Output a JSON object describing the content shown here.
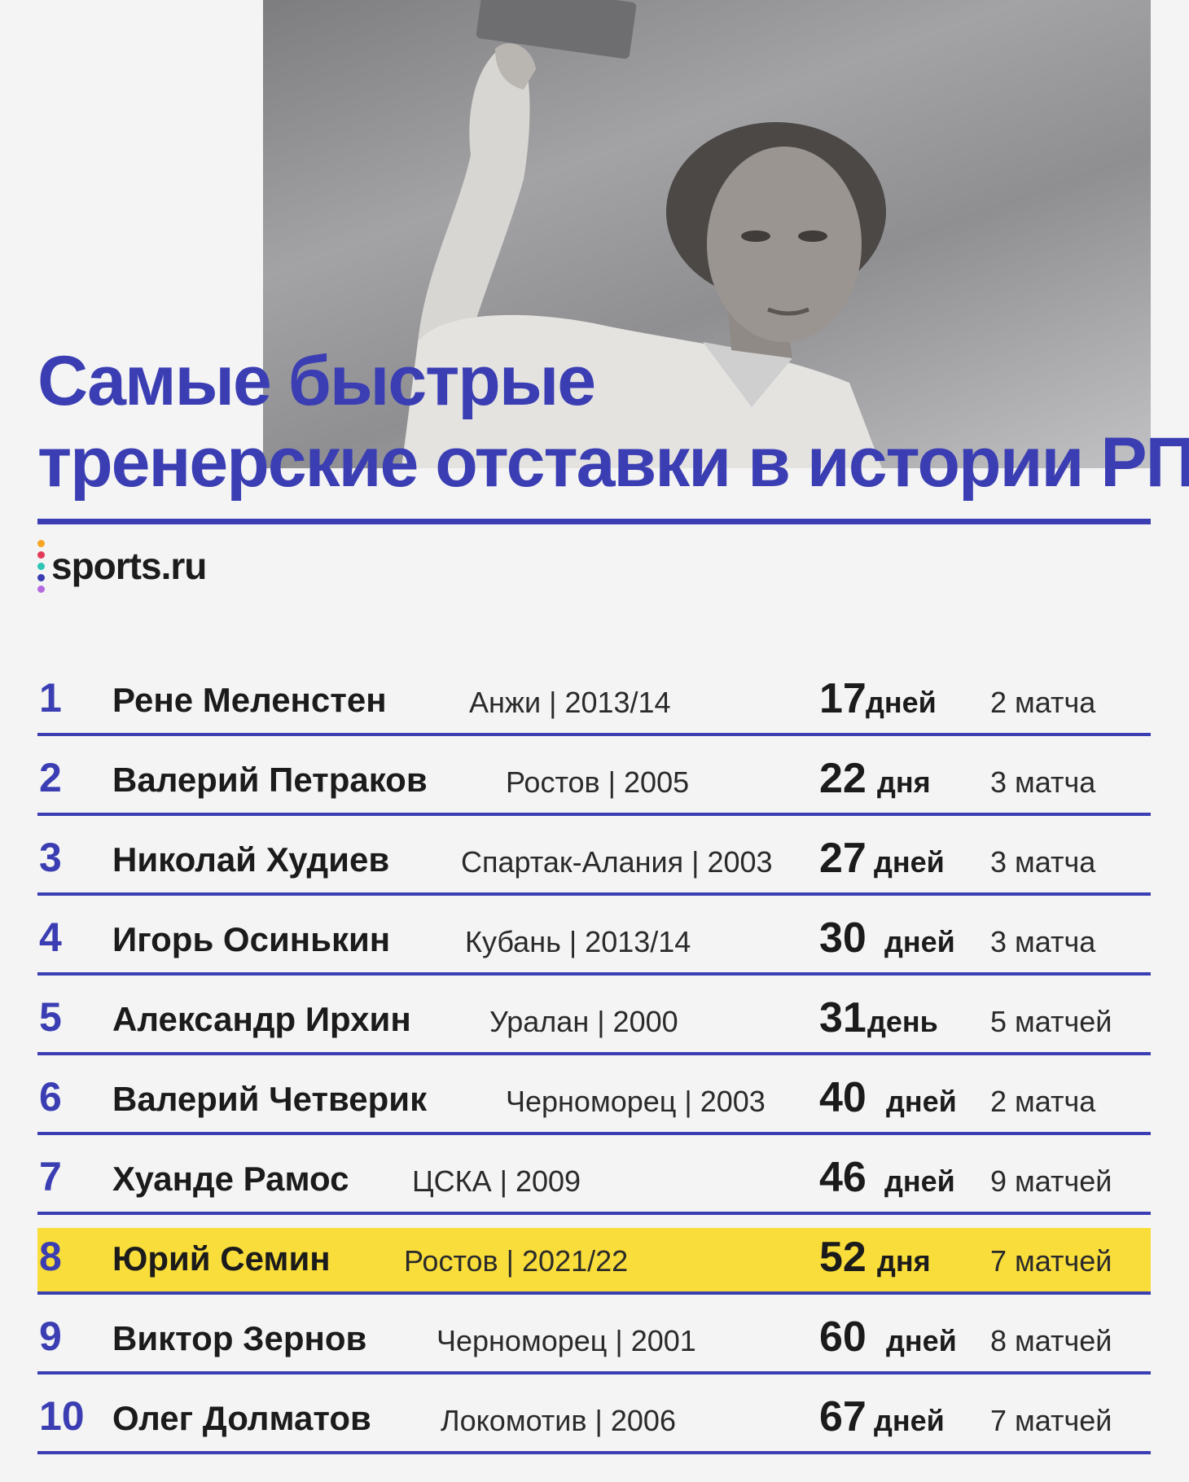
{
  "title": {
    "line1": "Самые быстрые",
    "line2": "тренерские отставки в истории РПЛ"
  },
  "logo": {
    "text": "sports.ru",
    "dot_colors": [
      "#f5a623",
      "#e23b5a",
      "#2ec4b6",
      "#3b3eb3",
      "#b56be0"
    ]
  },
  "colors": {
    "accent": "#3b3eb3",
    "highlight": "#f9dd3a",
    "background": "#f4f4f4"
  },
  "photo": {
    "description_icon": "coach-photo"
  },
  "rows": [
    {
      "rank": "1",
      "name": "Рене Меленстен",
      "club": "Анжи | 2013/14",
      "days": "17",
      "days_unit": "дней",
      "matches": "2 матча",
      "highlight": false
    },
    {
      "rank": "2",
      "name": "Валерий Петраков",
      "club": "Ростов | 2005",
      "days": "22",
      "days_unit": "дня",
      "matches": "3 матча",
      "highlight": false
    },
    {
      "rank": "3",
      "name": "Николай Худиев",
      "club": "Спартак-Алания | 2003",
      "days": "27",
      "days_unit": "дней",
      "matches": "3 матча",
      "highlight": false
    },
    {
      "rank": "4",
      "name": "Игорь Осинькин",
      "club": "Кубань | 2013/14",
      "days": "30",
      "days_unit": "дней",
      "matches": "3 матча",
      "highlight": false
    },
    {
      "rank": "5",
      "name": "Александр Ирхин",
      "club": "Уралан | 2000",
      "days": "31",
      "days_unit": "день",
      "matches": "5 матчей",
      "highlight": false
    },
    {
      "rank": "6",
      "name": "Валерий Четверик",
      "club": "Черноморец | 2003",
      "days": "40",
      "days_unit": "дней",
      "matches": "2 матча",
      "highlight": false
    },
    {
      "rank": "7",
      "name": "Хуанде Рамос",
      "club": "ЦСКА | 2009",
      "days": "46",
      "days_unit": "дней",
      "matches": "9 матчей",
      "highlight": false
    },
    {
      "rank": "8",
      "name": "Юрий Семин",
      "club": "Ростов | 2021/22",
      "days": "52",
      "days_unit": "дня",
      "matches": "7 матчей",
      "highlight": true
    },
    {
      "rank": "9",
      "name": "Виктор Зернов",
      "club": "Черноморец | 2001",
      "days": "60",
      "days_unit": "дней",
      "matches": "8 матчей",
      "highlight": false
    },
    {
      "rank": "10",
      "name": "Олег Долматов",
      "club": "Локомотив | 2006",
      "days": "67",
      "days_unit": "дней",
      "matches": "7 матчей",
      "highlight": false
    }
  ]
}
